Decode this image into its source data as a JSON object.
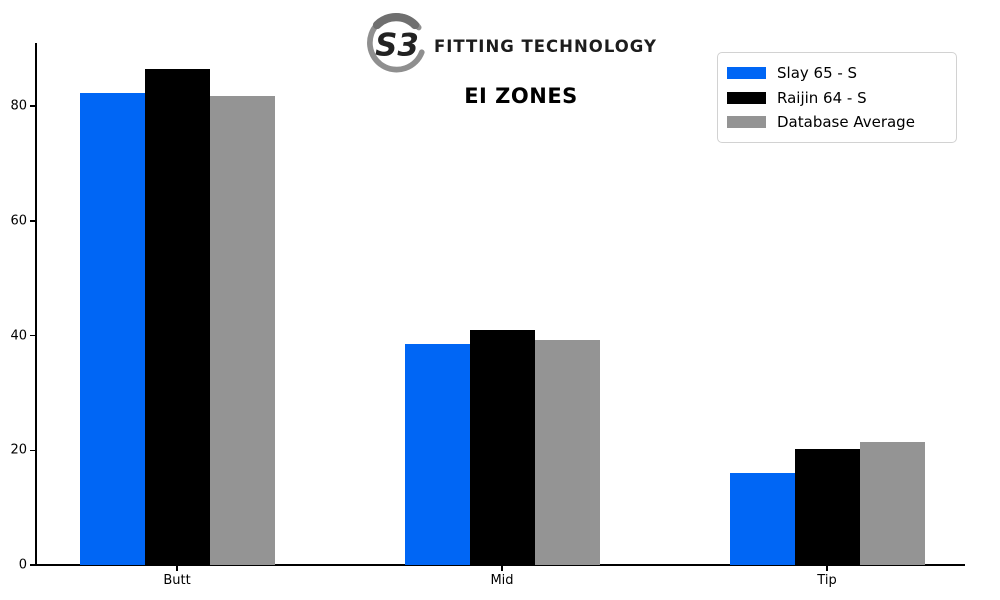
{
  "header": {
    "logo": {
      "monogram": "S3",
      "brand": "FITTING TECHNOLOGY",
      "swirl_color": "#8f8f8f",
      "swirl_accent_color": "#6f6f6f",
      "monogram_color": "#222222"
    },
    "title": "EI ZONES"
  },
  "colors": {
    "background": "#ffffff",
    "axis": "#000000",
    "tick_text": "#000000",
    "legend_border": "#d2d2d2"
  },
  "chart_data": {
    "type": "bar",
    "title": "EI ZONES",
    "categories": [
      "Butt",
      "Mid",
      "Tip"
    ],
    "series": [
      {
        "name": "Slay 65 - S",
        "color": "#0066f5",
        "values": [
          82.3,
          38.5,
          16.0
        ]
      },
      {
        "name": "Raijin 64 - S",
        "color": "#000000",
        "values": [
          86.4,
          40.9,
          20.3
        ]
      },
      {
        "name": "Database Average",
        "color": "#949494",
        "values": [
          81.7,
          39.3,
          21.5
        ]
      }
    ],
    "xlabel": "",
    "ylabel": "",
    "ylim": [
      0,
      91
    ],
    "yticks": [
      0,
      20,
      40,
      60,
      80
    ],
    "grid": false,
    "legend_position": "upper right"
  }
}
